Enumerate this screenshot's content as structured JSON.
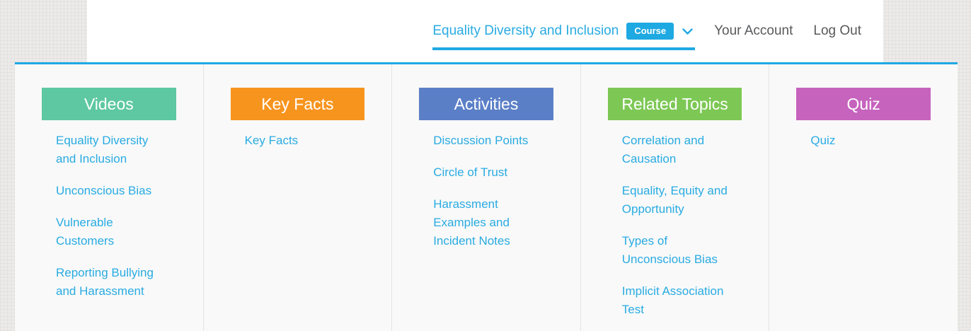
{
  "header": {
    "course_title": "Equality Diversity and Inclusion",
    "course_badge": "Course",
    "account_label": "Your Account",
    "logout_label": "Log Out"
  },
  "colors": {
    "accent": "#1FA9E2",
    "link": "#29ABE2",
    "nav_text": "#58595B",
    "panel_background": "#F9F9F9"
  },
  "icons": {
    "dropdown": "chevron-down-icon"
  },
  "menu": {
    "columns": [
      {
        "title": "Videos",
        "color": "#5DC8A1",
        "links": [
          "Equality Diversity and Inclusion",
          "Unconscious Bias",
          "Vulnerable Customers",
          "Reporting Bullying and Harassment"
        ]
      },
      {
        "title": "Key Facts",
        "color": "#F7941E",
        "links": [
          "Key Facts"
        ]
      },
      {
        "title": "Activities",
        "color": "#5B7FC7",
        "links": [
          "Discussion Points",
          "Circle of Trust",
          "Harassment Examples and Incident Notes"
        ]
      },
      {
        "title": "Related Topics",
        "color": "#7DC855",
        "links": [
          "Correlation and Causation",
          "Equality, Equity and Opportunity",
          "Types of Unconscious Bias",
          "Implicit Association Test"
        ]
      },
      {
        "title": "Quiz",
        "color": "#C663BD",
        "links": [
          "Quiz"
        ]
      }
    ]
  }
}
